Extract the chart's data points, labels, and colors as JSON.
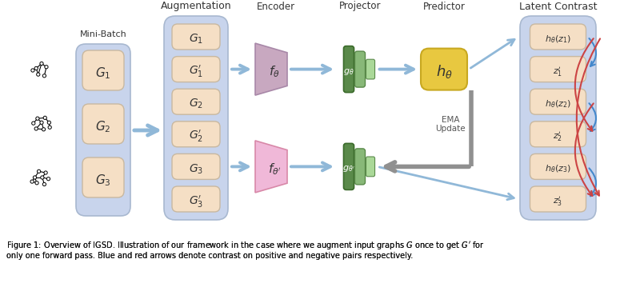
{
  "bg_color": "#ffffff",
  "box_color": "#f5dfc5",
  "box_edge": "#c8b8a0",
  "aug_bg": "#c8d4ec",
  "latent_bg": "#c8d4ec",
  "mb_bg": "#c8d4ec",
  "encoder_top_color": "#c8a8c0",
  "encoder_bot_color": "#f0b8d8",
  "projector_dark": "#5a8a4a",
  "projector_light": "#88b878",
  "predictor_color": "#e8c840",
  "predictor_edge": "#c8a820",
  "arrow_color": "#90b8d8",
  "ema_arrow_color": "#909090",
  "blue_arrow": "#4488cc",
  "red_arrow": "#cc4444",
  "aug_label": "Augmentation",
  "latent_label": "Latent Contrast",
  "encoder_label": "Encoder",
  "projector_label": "Projector",
  "predictor_label": "Predictor",
  "minibatch_label": "Mini-Batch",
  "ema_label": "EMA\nUpdate",
  "caption": "Figure 1: Overview of IGSD. Illustration of our framework in the case where we augment input graphs $G$ once to get $G'$ for\nonly one forward pass. Blue and red arrows denote contrast on positive and negative pairs respectively."
}
